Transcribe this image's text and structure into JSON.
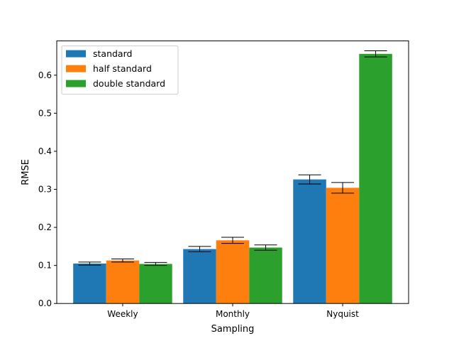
{
  "chart_data": {
    "type": "bar",
    "title": "",
    "xlabel": "Sampling",
    "ylabel": "RMSE",
    "categories": [
      "Weekly",
      "Monthly",
      "Nyquist"
    ],
    "ylim": [
      0,
      0.69
    ],
    "yticks": [
      0.0,
      0.1,
      0.2,
      0.3,
      0.4,
      0.5,
      0.6
    ],
    "ytick_labels": [
      "0.0",
      "0.1",
      "0.2",
      "0.3",
      "0.4",
      "0.5",
      "0.6"
    ],
    "legend_position": "top-left",
    "grid": false,
    "series": [
      {
        "name": "standard",
        "color": "#1f77b4",
        "values": [
          0.105,
          0.143,
          0.326
        ],
        "errors": [
          0.004,
          0.007,
          0.012
        ]
      },
      {
        "name": "half standard",
        "color": "#ff7f0e",
        "values": [
          0.113,
          0.166,
          0.304
        ],
        "errors": [
          0.004,
          0.008,
          0.014
        ]
      },
      {
        "name": "double standard",
        "color": "#2ca02c",
        "values": [
          0.104,
          0.147,
          0.656
        ],
        "errors": [
          0.004,
          0.007,
          0.008
        ]
      }
    ]
  }
}
